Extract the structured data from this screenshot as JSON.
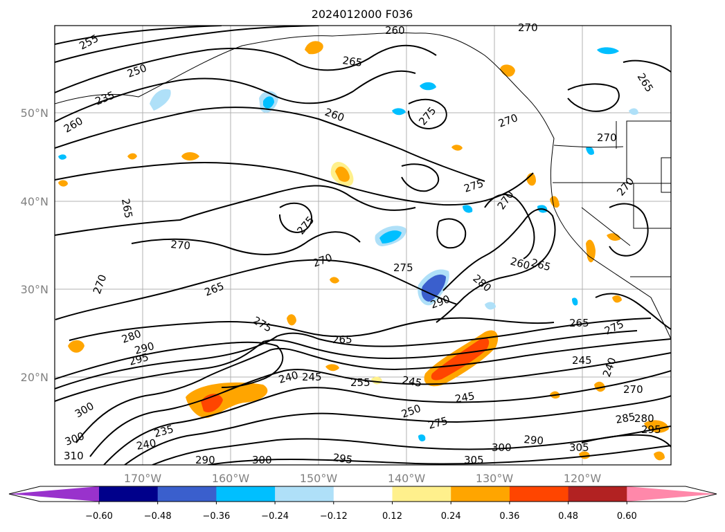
{
  "map": {
    "title": "2024012000 F036",
    "lat_labels": [
      "50°N",
      "40°N",
      "30°N",
      "20°N"
    ],
    "lon_labels": [
      "170°W",
      "160°W",
      "150°W",
      "140°W",
      "130°W",
      "120°W"
    ]
  },
  "colorbar": {
    "colors": [
      "#9932cc",
      "#00008b",
      "#3a5fcd",
      "#00bfff",
      "#afe0f8",
      "#ffffff",
      "#fff08c",
      "#ffa500",
      "#ff4500",
      "#b22222",
      "#ff88aa"
    ],
    "ticks": [
      "−0.60",
      "−0.48",
      "−0.36",
      "−0.24",
      "−0.12",
      "0.12",
      "0.24",
      "0.36",
      "0.48",
      "0.60"
    ]
  },
  "contour_labels": [
    "255",
    "260",
    "270",
    "265",
    "250",
    "235",
    "260",
    "260",
    "275",
    "270",
    "265",
    "275",
    "270",
    "270",
    "270",
    "265",
    "270",
    "275",
    "270",
    "275",
    "265",
    "260",
    "280",
    "290",
    "280",
    "290",
    "295",
    "275",
    "265",
    "240",
    "245",
    "255",
    "245",
    "245",
    "250",
    "275",
    "265",
    "275",
    "245",
    "240",
    "270",
    "285",
    "280",
    "295",
    "290",
    "300",
    "305",
    "305",
    "300",
    "300",
    "235",
    "240",
    "300",
    "310",
    "290",
    "295",
    "265",
    "270"
  ]
}
